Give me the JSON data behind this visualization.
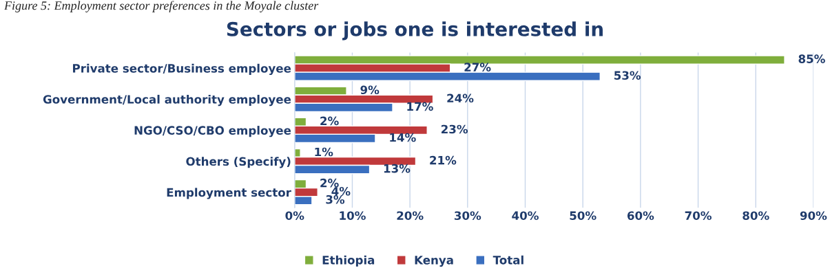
{
  "chart_data": {
    "type": "bar",
    "orientation": "horizontal",
    "title": "Sectors or jobs one is interested in",
    "annotations": [
      "Figure 5: Employment sector preferences in the Moyale cluster"
    ],
    "categories": [
      "Private sector/Business employee",
      "Government/Local authority employee",
      "NGO/CSO/CBO employee",
      "Others (Specify)",
      "Employment sector"
    ],
    "series": [
      {
        "name": "Ethiopia",
        "color": "#7fae3c",
        "values": [
          85,
          9,
          2,
          1,
          2
        ],
        "value_labels": [
          "85%",
          "9%",
          "2%",
          "1%",
          "2%"
        ]
      },
      {
        "name": "Kenya",
        "color": "#c0393b",
        "values": [
          27,
          24,
          23,
          21,
          4
        ],
        "value_labels": [
          "27%",
          "24%",
          "23%",
          "21%",
          "4%"
        ]
      },
      {
        "name": "Total",
        "color": "#3a6fbf",
        "values": [
          53,
          17,
          14,
          13,
          3
        ],
        "value_labels": [
          "53%",
          "17%",
          "14%",
          "13%",
          "3%"
        ]
      }
    ],
    "xlim": [
      0,
      90
    ],
    "xticks": [
      {
        "value": 0,
        "label": "0%"
      },
      {
        "value": 10,
        "label": "10%"
      },
      {
        "value": 20,
        "label": "20%"
      },
      {
        "value": 30,
        "label": "30%"
      },
      {
        "value": 40,
        "label": "40%"
      },
      {
        "value": 50,
        "label": "50%"
      },
      {
        "value": 60,
        "label": "60%"
      },
      {
        "value": 70,
        "label": "70%"
      },
      {
        "value": 80,
        "label": "80%"
      },
      {
        "value": 90,
        "label": "90%"
      }
    ],
    "grid": "x",
    "legend": "bottom"
  }
}
